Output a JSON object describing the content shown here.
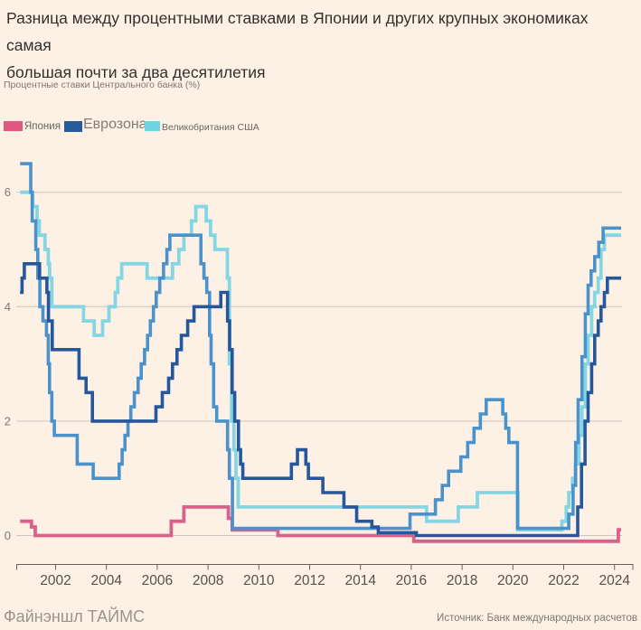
{
  "header": {
    "title_lines": [
      "Разница между процентными ставками в Японии и других крупных экономиках самая",
      "большая почти за два десятилетия"
    ],
    "subtitle": "Процентные ставки Центрального банка (%)"
  },
  "legend": {
    "items": [
      {
        "id": "japan",
        "label": "Япония",
        "color": "#e25780"
      },
      {
        "id": "eurozone",
        "label": "Еврозона",
        "color": "#255a9b"
      },
      {
        "id": "uk-us",
        "label": "Великобритания США",
        "color": "#70d3e2"
      }
    ]
  },
  "footer": {
    "brand": "Файнэншл ТАЙМС",
    "source": "Источник: Банк международных расчетов"
  },
  "chart_data": {
    "type": "line",
    "step": true,
    "title": "Разница между процентными ставками в Японии и других крупных экономиках самая большая почти за два десятилетия",
    "ylabel": "Процентные ставки Центрального банка (%)",
    "x_range": [
      2000.6,
      2024.26
    ],
    "ylim": [
      -0.3,
      6.7
    ],
    "y_ticks": [
      0,
      2,
      4,
      6
    ],
    "x_ticks": [
      2002,
      2004,
      2006,
      2008,
      2010,
      2012,
      2014,
      2016,
      2018,
      2020,
      2022,
      2024
    ],
    "grid": "horizontal",
    "legend_position": "top-left",
    "colors": {
      "gridline": "#cfc5bc",
      "axis": "#66605a",
      "tick_label": "#55504b",
      "y_label": "#7f7870",
      "background": "#fdf1e5"
    },
    "series": [
      {
        "id": "japan",
        "name": "Япония",
        "color": "#d9618a",
        "width": 3.8,
        "points": [
          [
            2000.6,
            0.25
          ],
          [
            2001.05,
            0.15
          ],
          [
            2001.2,
            0
          ],
          [
            2006.55,
            0.25
          ],
          [
            2007.05,
            0.5
          ],
          [
            2008.8,
            0.3
          ],
          [
            2008.95,
            0.1
          ],
          [
            2010.75,
            0
          ],
          [
            2016.1,
            -0.1
          ],
          [
            2024.15,
            0.1
          ]
        ]
      },
      {
        "id": "uk",
        "name": "Великобритания",
        "color": "#85d6e3",
        "width": 3.8,
        "points": [
          [
            2000.6,
            6.0
          ],
          [
            2001.1,
            5.75
          ],
          [
            2001.27,
            5.5
          ],
          [
            2001.36,
            5.25
          ],
          [
            2001.58,
            5.0
          ],
          [
            2001.71,
            4.75
          ],
          [
            2001.76,
            4.5
          ],
          [
            2001.85,
            4.0
          ],
          [
            2003.1,
            3.75
          ],
          [
            2003.52,
            3.5
          ],
          [
            2003.85,
            3.75
          ],
          [
            2004.1,
            4.0
          ],
          [
            2004.35,
            4.25
          ],
          [
            2004.45,
            4.5
          ],
          [
            2004.6,
            4.75
          ],
          [
            2005.6,
            4.5
          ],
          [
            2006.6,
            4.75
          ],
          [
            2006.85,
            5.0
          ],
          [
            2007.05,
            5.25
          ],
          [
            2007.35,
            5.5
          ],
          [
            2007.52,
            5.75
          ],
          [
            2007.93,
            5.5
          ],
          [
            2008.1,
            5.25
          ],
          [
            2008.27,
            5.0
          ],
          [
            2008.76,
            4.5
          ],
          [
            2008.84,
            3.0
          ],
          [
            2008.93,
            2.0
          ],
          [
            2009.02,
            1.5
          ],
          [
            2009.1,
            1.0
          ],
          [
            2009.19,
            0.5
          ],
          [
            2016.6,
            0.25
          ],
          [
            2017.85,
            0.5
          ],
          [
            2018.6,
            0.75
          ],
          [
            2020.2,
            0.1
          ],
          [
            2021.93,
            0.25
          ],
          [
            2022.1,
            0.5
          ],
          [
            2022.2,
            0.75
          ],
          [
            2022.35,
            1.0
          ],
          [
            2022.46,
            1.25
          ],
          [
            2022.6,
            1.75
          ],
          [
            2022.72,
            2.25
          ],
          [
            2022.85,
            3.0
          ],
          [
            2022.96,
            3.5
          ],
          [
            2023.1,
            4.0
          ],
          [
            2023.22,
            4.25
          ],
          [
            2023.36,
            4.5
          ],
          [
            2023.47,
            5.0
          ],
          [
            2023.6,
            5.25
          ]
        ]
      },
      {
        "id": "us",
        "name": "США",
        "color": "#4b92ca",
        "width": 3.6,
        "points": [
          [
            2000.6,
            6.5
          ],
          [
            2001.02,
            6.0
          ],
          [
            2001.08,
            5.5
          ],
          [
            2001.22,
            5.0
          ],
          [
            2001.3,
            4.5
          ],
          [
            2001.38,
            4.0
          ],
          [
            2001.5,
            3.75
          ],
          [
            2001.64,
            3.5
          ],
          [
            2001.71,
            3.0
          ],
          [
            2001.76,
            2.5
          ],
          [
            2001.85,
            2.0
          ],
          [
            2001.95,
            1.75
          ],
          [
            2002.85,
            1.25
          ],
          [
            2003.48,
            1.0
          ],
          [
            2004.5,
            1.25
          ],
          [
            2004.62,
            1.5
          ],
          [
            2004.73,
            1.75
          ],
          [
            2004.85,
            2.0
          ],
          [
            2004.96,
            2.25
          ],
          [
            2005.1,
            2.5
          ],
          [
            2005.25,
            2.75
          ],
          [
            2005.37,
            3.0
          ],
          [
            2005.5,
            3.25
          ],
          [
            2005.62,
            3.5
          ],
          [
            2005.73,
            3.75
          ],
          [
            2005.85,
            4.0
          ],
          [
            2005.96,
            4.25
          ],
          [
            2006.1,
            4.5
          ],
          [
            2006.25,
            4.75
          ],
          [
            2006.38,
            5.0
          ],
          [
            2006.5,
            5.25
          ],
          [
            2007.72,
            4.75
          ],
          [
            2007.84,
            4.5
          ],
          [
            2007.95,
            4.25
          ],
          [
            2008.06,
            3.5
          ],
          [
            2008.12,
            3.0
          ],
          [
            2008.22,
            2.25
          ],
          [
            2008.34,
            2.0
          ],
          [
            2008.77,
            1.5
          ],
          [
            2008.84,
            1.0
          ],
          [
            2008.96,
            0.125
          ],
          [
            2015.95,
            0.375
          ],
          [
            2016.95,
            0.625
          ],
          [
            2017.22,
            0.875
          ],
          [
            2017.47,
            1.125
          ],
          [
            2017.95,
            1.375
          ],
          [
            2018.22,
            1.625
          ],
          [
            2018.47,
            1.875
          ],
          [
            2018.72,
            2.125
          ],
          [
            2018.95,
            2.375
          ],
          [
            2019.6,
            2.125
          ],
          [
            2019.72,
            1.875
          ],
          [
            2019.84,
            1.625
          ],
          [
            2020.18,
            0.125
          ],
          [
            2022.2,
            0.375
          ],
          [
            2022.37,
            0.875
          ],
          [
            2022.47,
            1.625
          ],
          [
            2022.57,
            2.375
          ],
          [
            2022.72,
            3.125
          ],
          [
            2022.85,
            3.875
          ],
          [
            2022.96,
            4.375
          ],
          [
            2023.08,
            4.625
          ],
          [
            2023.22,
            4.875
          ],
          [
            2023.38,
            5.125
          ],
          [
            2023.55,
            5.375
          ]
        ]
      },
      {
        "id": "eurozone",
        "name": "Еврозона",
        "color": "#26579b",
        "width": 3.6,
        "points": [
          [
            2000.6,
            4.25
          ],
          [
            2000.68,
            4.5
          ],
          [
            2000.77,
            4.75
          ],
          [
            2001.37,
            4.5
          ],
          [
            2001.66,
            4.25
          ],
          [
            2001.72,
            3.75
          ],
          [
            2001.87,
            3.25
          ],
          [
            2002.92,
            2.75
          ],
          [
            2003.2,
            2.5
          ],
          [
            2003.45,
            2.0
          ],
          [
            2005.95,
            2.25
          ],
          [
            2006.2,
            2.5
          ],
          [
            2006.45,
            2.75
          ],
          [
            2006.6,
            3.0
          ],
          [
            2006.78,
            3.25
          ],
          [
            2006.95,
            3.5
          ],
          [
            2007.2,
            3.75
          ],
          [
            2007.45,
            4.0
          ],
          [
            2008.5,
            4.25
          ],
          [
            2008.77,
            3.75
          ],
          [
            2008.85,
            3.25
          ],
          [
            2008.95,
            2.5
          ],
          [
            2009.05,
            2.0
          ],
          [
            2009.2,
            1.5
          ],
          [
            2009.28,
            1.25
          ],
          [
            2009.37,
            1.0
          ],
          [
            2011.28,
            1.25
          ],
          [
            2011.52,
            1.5
          ],
          [
            2011.85,
            1.25
          ],
          [
            2011.95,
            1.0
          ],
          [
            2012.52,
            0.75
          ],
          [
            2013.35,
            0.5
          ],
          [
            2013.85,
            0.25
          ],
          [
            2014.45,
            0.15
          ],
          [
            2014.7,
            0.05
          ],
          [
            2016.2,
            0
          ],
          [
            2022.55,
            0.5
          ],
          [
            2022.7,
            1.25
          ],
          [
            2022.84,
            2.0
          ],
          [
            2022.96,
            2.5
          ],
          [
            2023.1,
            3.0
          ],
          [
            2023.22,
            3.5
          ],
          [
            2023.36,
            3.75
          ],
          [
            2023.47,
            4.0
          ],
          [
            2023.6,
            4.25
          ],
          [
            2023.72,
            4.5
          ]
        ]
      }
    ]
  }
}
